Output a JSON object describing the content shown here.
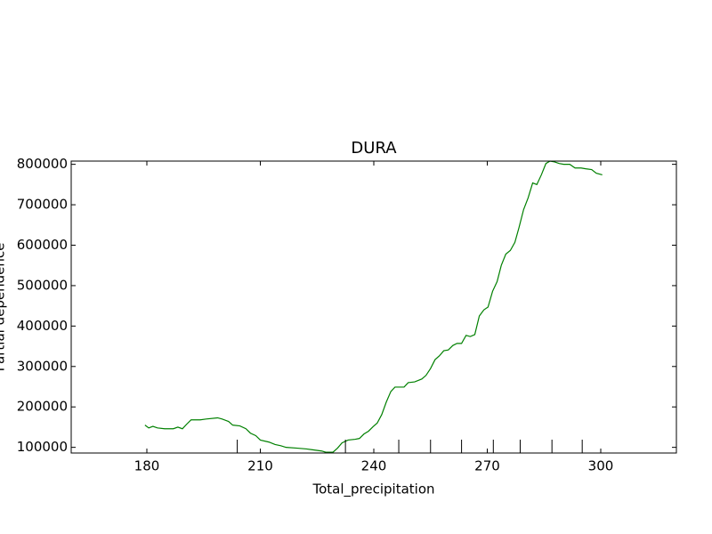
{
  "chart_data": {
    "type": "line",
    "title": "DURA",
    "x_label": "Total_precipitation",
    "y_label": "Partial dependence",
    "x": [
      179.5,
      180.5,
      181.6,
      182.8,
      184.7,
      187.0,
      188.2,
      189.4,
      190.5,
      191.7,
      194.1,
      195.7,
      198.7,
      199.9,
      201.6,
      202.7,
      204.6,
      206.2,
      207.4,
      208.8,
      210.0,
      212.3,
      213.9,
      215.4,
      216.8,
      219.8,
      222.2,
      223.8,
      226.2,
      227.3,
      229.2,
      230.4,
      231.6,
      233.2,
      235.1,
      236.2,
      237.4,
      238.6,
      239.8,
      240.9,
      242.1,
      243.3,
      244.5,
      245.6,
      247.3,
      248.0,
      249.1,
      250.8,
      252.7,
      253.8,
      255.0,
      256.2,
      257.3,
      258.5,
      259.7,
      260.9,
      262.0,
      263.2,
      264.4,
      265.5,
      266.7,
      267.9,
      269.1,
      270.2,
      271.4,
      272.6,
      273.7,
      274.9,
      276.1,
      277.3,
      278.4,
      279.6,
      280.8,
      282.0,
      283.1,
      284.3,
      285.5,
      286.6,
      287.8,
      289.0,
      290.2,
      291.8,
      293.2,
      294.8,
      296.0,
      297.6,
      298.8,
      300.4
    ],
    "series": [
      {
        "color": "#008000",
        "values": [
          155000,
          148000,
          152000,
          148000,
          146000,
          146000,
          150000,
          146000,
          157000,
          168000,
          168000,
          170000,
          173000,
          170000,
          164000,
          155000,
          153000,
          146000,
          135000,
          129000,
          118000,
          113000,
          107000,
          104000,
          100000,
          98000,
          96000,
          94000,
          91000,
          88000,
          88000,
          98000,
          111000,
          118000,
          120000,
          122000,
          133000,
          140000,
          151000,
          160000,
          181000,
          212000,
          238000,
          249000,
          249000,
          249000,
          260000,
          262000,
          269000,
          278000,
          295000,
          317000,
          326000,
          339000,
          341000,
          352000,
          357000,
          357000,
          377000,
          374000,
          379000,
          425000,
          440000,
          447000,
          486000,
          510000,
          550000,
          578000,
          587000,
          607000,
          644000,
          688000,
          717000,
          754000,
          750000,
          774000,
          802000,
          808000,
          806000,
          802000,
          800000,
          800000,
          791000,
          791000,
          789000,
          787000,
          778000,
          774000
        ]
      }
    ],
    "deciles": [
      203.9,
      232.5,
      246.6,
      255.0,
      263.2,
      271.6,
      278.7,
      287.1,
      295.1
    ],
    "xlim": [
      160,
      320
    ],
    "ylim": [
      86000,
      808000
    ],
    "xticks": [
      180,
      210,
      240,
      270,
      300
    ],
    "yticks": [
      100000,
      200000,
      300000,
      400000,
      500000,
      600000,
      700000,
      800000
    ]
  }
}
